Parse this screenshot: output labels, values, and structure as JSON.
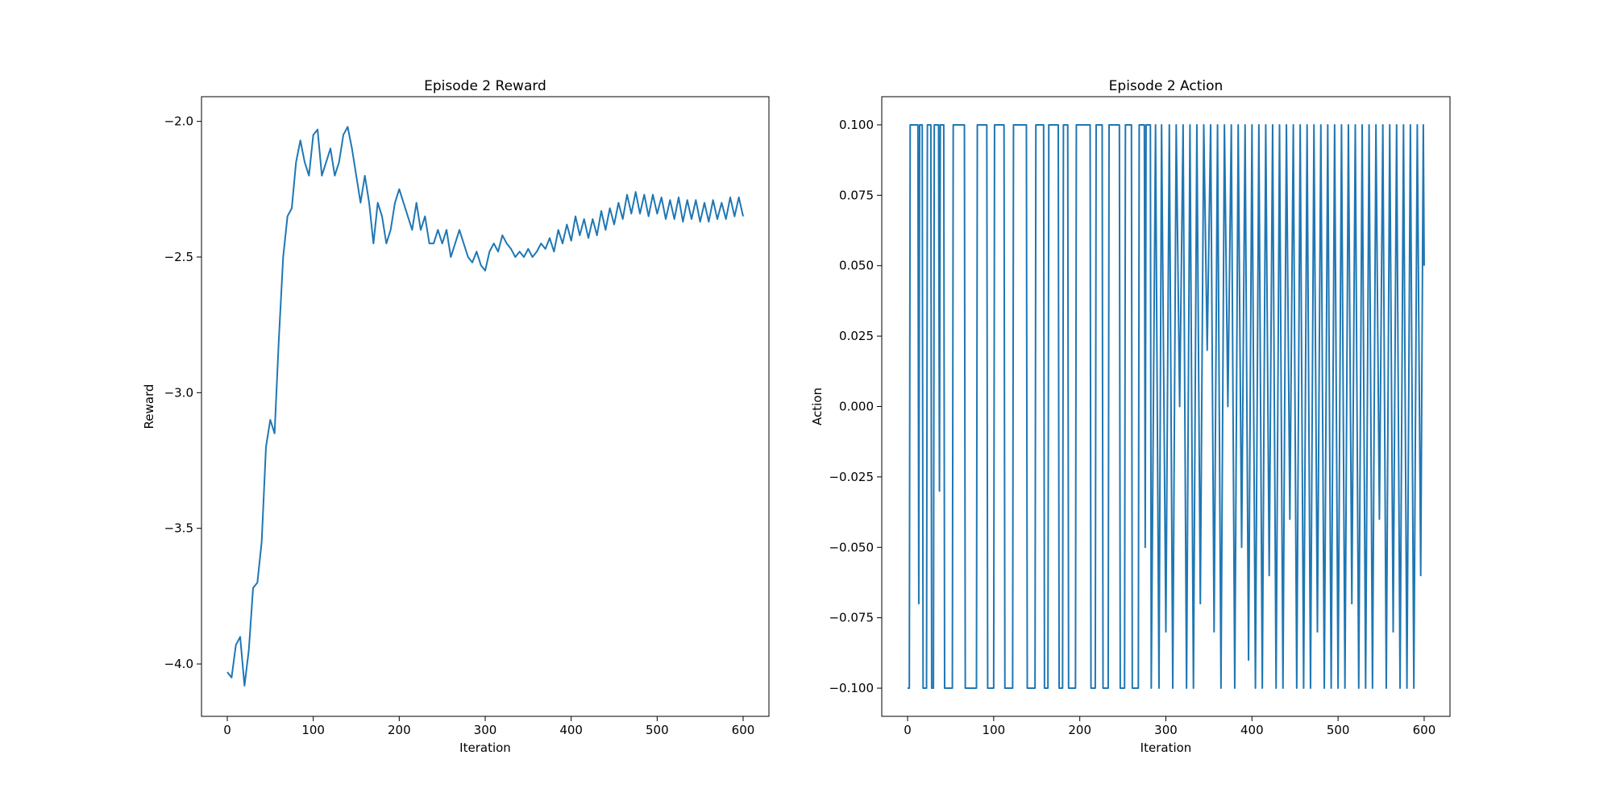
{
  "chart_data": [
    {
      "type": "line",
      "title": "Episode 2 Reward",
      "xlabel": "Iteration",
      "ylabel": "Reward",
      "color": "#1f77b4",
      "x": [
        0,
        5,
        10,
        15,
        20,
        25,
        30,
        35,
        40,
        45,
        50,
        55,
        60,
        65,
        70,
        75,
        80,
        85,
        90,
        95,
        100,
        105,
        110,
        115,
        120,
        125,
        130,
        135,
        140,
        145,
        150,
        155,
        160,
        165,
        170,
        175,
        180,
        185,
        190,
        195,
        200,
        205,
        210,
        215,
        220,
        225,
        230,
        235,
        240,
        245,
        250,
        255,
        260,
        265,
        270,
        275,
        280,
        285,
        290,
        295,
        300,
        305,
        310,
        315,
        320,
        325,
        330,
        335,
        340,
        345,
        350,
        355,
        360,
        365,
        370,
        375,
        380,
        385,
        390,
        395,
        400,
        405,
        410,
        415,
        420,
        425,
        430,
        435,
        440,
        445,
        450,
        455,
        460,
        465,
        470,
        475,
        480,
        485,
        490,
        495,
        500,
        505,
        510,
        515,
        520,
        525,
        530,
        535,
        540,
        545,
        550,
        555,
        560,
        565,
        570,
        575,
        580,
        585,
        590,
        595,
        600
      ],
      "values": [
        -4.03,
        -4.05,
        -3.93,
        -3.9,
        -4.08,
        -3.95,
        -3.72,
        -3.7,
        -3.55,
        -3.2,
        -3.1,
        -3.15,
        -2.8,
        -2.5,
        -2.35,
        -2.32,
        -2.15,
        -2.07,
        -2.15,
        -2.2,
        -2.05,
        -2.03,
        -2.2,
        -2.15,
        -2.1,
        -2.2,
        -2.15,
        -2.05,
        -2.02,
        -2.1,
        -2.2,
        -2.3,
        -2.2,
        -2.3,
        -2.45,
        -2.3,
        -2.35,
        -2.45,
        -2.4,
        -2.3,
        -2.25,
        -2.3,
        -2.35,
        -2.4,
        -2.3,
        -2.4,
        -2.35,
        -2.45,
        -2.45,
        -2.4,
        -2.45,
        -2.4,
        -2.5,
        -2.45,
        -2.4,
        -2.45,
        -2.5,
        -2.52,
        -2.48,
        -2.53,
        -2.55,
        -2.48,
        -2.45,
        -2.48,
        -2.42,
        -2.45,
        -2.47,
        -2.5,
        -2.48,
        -2.5,
        -2.47,
        -2.5,
        -2.48,
        -2.45,
        -2.47,
        -2.43,
        -2.48,
        -2.4,
        -2.45,
        -2.38,
        -2.44,
        -2.35,
        -2.42,
        -2.36,
        -2.43,
        -2.36,
        -2.42,
        -2.33,
        -2.4,
        -2.32,
        -2.38,
        -2.3,
        -2.36,
        -2.27,
        -2.34,
        -2.26,
        -2.34,
        -2.27,
        -2.35,
        -2.27,
        -2.34,
        -2.28,
        -2.36,
        -2.29,
        -2.36,
        -2.28,
        -2.37,
        -2.29,
        -2.36,
        -2.29,
        -2.37,
        -2.3,
        -2.37,
        -2.29,
        -2.36,
        -2.3,
        -2.36,
        -2.28,
        -2.35,
        -2.28,
        -2.35
      ],
      "xlim": [
        -30,
        630
      ],
      "xticks": [
        0,
        100,
        200,
        300,
        400,
        500,
        600
      ],
      "ylim": [
        -4.193,
        -1.909
      ],
      "yticks": [
        {
          "value": -4.0,
          "label": "−4.0"
        },
        {
          "value": -3.5,
          "label": "−3.5"
        },
        {
          "value": -3.0,
          "label": "−3.0"
        },
        {
          "value": -2.5,
          "label": "−2.5"
        },
        {
          "value": -2.0,
          "label": "−2.0"
        }
      ]
    },
    {
      "type": "line",
      "title": "Episode 2 Action",
      "xlabel": "Iteration",
      "ylabel": "Action",
      "color": "#1f77b4",
      "x": [
        0,
        2,
        3,
        12,
        13,
        14,
        17,
        18,
        22,
        23,
        27,
        28,
        30,
        31,
        36,
        37,
        38,
        42,
        43,
        52,
        53,
        66,
        67,
        80,
        81,
        92,
        93,
        100,
        101,
        112,
        113,
        122,
        123,
        138,
        139,
        148,
        149,
        158,
        159,
        163,
        164,
        175,
        176,
        180,
        181,
        186,
        187,
        195,
        196,
        212,
        213,
        218,
        219,
        226,
        227,
        233,
        234,
        246,
        247,
        252,
        253,
        260,
        261,
        268,
        269,
        275,
        276,
        277,
        282,
        283,
        288,
        292,
        295,
        300,
        304,
        308,
        312,
        316,
        320,
        324,
        328,
        332,
        336,
        340,
        344,
        348,
        352,
        356,
        360,
        364,
        368,
        372,
        376,
        380,
        384,
        388,
        392,
        396,
        400,
        404,
        408,
        412,
        416,
        420,
        424,
        428,
        432,
        436,
        440,
        444,
        448,
        452,
        456,
        460,
        464,
        468,
        472,
        476,
        480,
        484,
        488,
        492,
        496,
        500,
        504,
        508,
        512,
        516,
        520,
        524,
        528,
        532,
        536,
        540,
        544,
        548,
        552,
        556,
        560,
        564,
        568,
        572,
        576,
        580,
        584,
        588,
        592,
        596,
        599,
        600
      ],
      "values": [
        -0.1,
        -0.1,
        0.1,
        0.1,
        -0.07,
        0.1,
        0.1,
        -0.1,
        -0.1,
        0.1,
        0.1,
        -0.1,
        -0.1,
        0.1,
        0.1,
        -0.03,
        0.1,
        0.1,
        -0.1,
        -0.1,
        0.1,
        0.1,
        -0.1,
        -0.1,
        0.1,
        0.1,
        -0.1,
        -0.1,
        0.1,
        0.1,
        -0.1,
        -0.1,
        0.1,
        0.1,
        -0.1,
        -0.1,
        0.1,
        0.1,
        -0.1,
        -0.1,
        0.1,
        0.1,
        -0.1,
        -0.1,
        0.1,
        0.1,
        -0.1,
        -0.1,
        0.1,
        0.1,
        -0.1,
        -0.1,
        0.1,
        0.1,
        -0.1,
        -0.1,
        0.1,
        0.1,
        -0.1,
        -0.1,
        0.1,
        0.1,
        -0.1,
        -0.1,
        0.1,
        0.1,
        -0.05,
        0.1,
        0.1,
        -0.1,
        0.1,
        -0.1,
        0.1,
        -0.08,
        0.1,
        -0.1,
        0.1,
        0.0,
        0.1,
        -0.1,
        0.1,
        -0.1,
        0.1,
        -0.07,
        0.1,
        0.02,
        0.1,
        -0.08,
        0.1,
        -0.1,
        0.1,
        0.0,
        0.1,
        -0.1,
        0.1,
        -0.05,
        0.1,
        -0.09,
        0.1,
        -0.1,
        0.1,
        -0.1,
        0.1,
        -0.06,
        0.1,
        -0.1,
        0.1,
        -0.1,
        0.1,
        -0.04,
        0.1,
        -0.1,
        0.1,
        -0.1,
        0.1,
        -0.1,
        0.1,
        -0.08,
        0.1,
        -0.1,
        0.1,
        -0.1,
        0.1,
        -0.1,
        0.1,
        -0.1,
        0.1,
        -0.07,
        0.1,
        -0.1,
        0.1,
        -0.1,
        0.1,
        -0.1,
        0.1,
        -0.04,
        0.1,
        -0.1,
        0.1,
        -0.08,
        0.1,
        -0.1,
        0.1,
        -0.1,
        0.1,
        -0.1,
        0.1,
        -0.06,
        0.1,
        0.05
      ],
      "xlim": [
        -30,
        630
      ],
      "xticks": [
        0,
        100,
        200,
        300,
        400,
        500,
        600
      ],
      "ylim": [
        -0.11,
        0.11
      ],
      "yticks": [
        {
          "value": -0.1,
          "label": "−0.100"
        },
        {
          "value": -0.075,
          "label": "−0.075"
        },
        {
          "value": -0.05,
          "label": "−0.050"
        },
        {
          "value": -0.025,
          "label": "−0.025"
        },
        {
          "value": 0.0,
          "label": "0.000"
        },
        {
          "value": 0.025,
          "label": "0.025"
        },
        {
          "value": 0.05,
          "label": "0.050"
        },
        {
          "value": 0.075,
          "label": "0.075"
        },
        {
          "value": 0.1,
          "label": "0.100"
        }
      ]
    }
  ]
}
